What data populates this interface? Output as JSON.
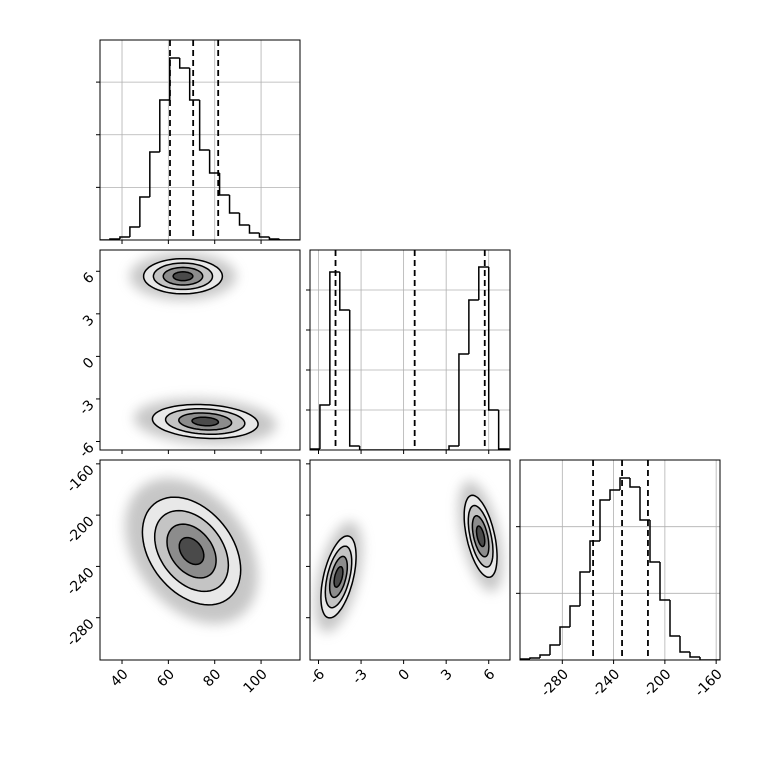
{
  "chart_data": [
    {
      "type": "histogram",
      "xlim": [
        30.5,
        116.8
      ],
      "ylim": [
        0,
        1900
      ],
      "xticks": [
        40,
        60,
        80,
        100
      ],
      "yticks": [
        500,
        1000,
        1500
      ],
      "grid": true,
      "xticklabels": false,
      "yticklabels": false,
      "bins": [
        30.5,
        34.8,
        39.1,
        43.4,
        47.7,
        52.0,
        56.3,
        60.6,
        64.9,
        69.2,
        73.5,
        77.8,
        82.1,
        86.4,
        90.7,
        95.0,
        99.3,
        103.6,
        107.9,
        112.2,
        116.5
      ],
      "values": [
        0,
        10,
        28,
        124,
        409,
        836,
        1330,
        1729,
        1634,
        1330,
        855,
        637,
        428,
        257,
        143,
        67,
        28,
        10,
        0,
        0
      ],
      "quantiles": [
        60.7,
        70.7,
        81.5
      ]
    },
    {
      "type": "contour",
      "xlim": [
        30.5,
        116.8
      ],
      "ylim": [
        -6.6,
        7.5
      ],
      "xticks": [
        40,
        60,
        80,
        100
      ],
      "yticks": [
        -6,
        -3,
        0,
        3,
        6
      ],
      "grid": false,
      "xticklabels": false,
      "yticklabels": true,
      "levels": [
        0.5,
        1,
        1.5,
        2
      ],
      "clusters": [
        {
          "x": 66.3,
          "y": 5.65,
          "sx": 8.5,
          "sy": 0.62,
          "rho": 0
        },
        {
          "x": 75.9,
          "y": -4.59,
          "sx": 11.4,
          "sy": 0.6,
          "rho": -0.15
        }
      ]
    },
    {
      "type": "histogram",
      "xlim": [
        -6.6,
        7.5
      ],
      "ylim": [
        0,
        5000
      ],
      "xticks": [
        -6,
        -3,
        0,
        3,
        6
      ],
      "yticks": [
        1000,
        2000,
        3000,
        4000
      ],
      "grid": true,
      "xticklabels": false,
      "yticklabels": false,
      "bins": [
        -6.6,
        -5.9,
        -5.2,
        -4.5,
        -3.8,
        -3.1,
        -2.4,
        -1.7,
        -1.0,
        -0.3,
        0.4,
        1.1,
        1.8,
        2.5,
        3.2,
        3.9,
        4.6,
        5.3,
        6.0,
        6.7,
        7.4
      ],
      "values": [
        25,
        1125,
        4450,
        3500,
        100,
        0,
        0,
        0,
        0,
        0,
        0,
        0,
        0,
        0,
        100,
        2400,
        3750,
        4575,
        1000,
        25
      ],
      "quantiles": [
        -4.8,
        0.78,
        5.72
      ]
    },
    {
      "type": "contour",
      "xlim": [
        30.5,
        116.8
      ],
      "ylim": [
        -313,
        -157
      ],
      "xticks": [
        40,
        60,
        80,
        100
      ],
      "yticks": [
        -280,
        -240,
        -200,
        -160
      ],
      "grid": false,
      "xticklabels": true,
      "yticklabels": true,
      "levels": [
        0.5,
        1,
        1.5,
        2
      ],
      "clusters": [
        {
          "x": 70,
          "y": -228,
          "sx": 10.6,
          "sy": 21,
          "rho": -0.35
        }
      ]
    },
    {
      "type": "contour",
      "xlim": [
        -6.6,
        7.5
      ],
      "ylim": [
        -313,
        -157
      ],
      "xticks": [
        -6,
        -3,
        0,
        3,
        6
      ],
      "yticks": [
        -280,
        -240,
        -200,
        -160
      ],
      "grid": false,
      "xticklabels": true,
      "yticklabels": false,
      "levels": [
        0.5,
        1,
        1.5,
        2
      ],
      "clusters": [
        {
          "x": -4.59,
          "y": -248.2,
          "sx": 0.62,
          "sy": 16,
          "rho": 0.5
        },
        {
          "x": 5.43,
          "y": -216.5,
          "sx": 0.58,
          "sy": 16,
          "rho": -0.5
        }
      ]
    },
    {
      "type": "histogram",
      "xlim": [
        -313,
        -157
      ],
      "ylim": [
        0,
        3000
      ],
      "xticks": [
        -280,
        -240,
        -200,
        -160
      ],
      "yticks": [
        1000,
        2000
      ],
      "grid": true,
      "xticklabels": true,
      "yticklabels": false,
      "bins": [
        -313,
        -305.2,
        -297.4,
        -289.6,
        -281.8,
        -274,
        -266.2,
        -258.4,
        -250.6,
        -242.8,
        -235,
        -227.2,
        -219.4,
        -211.6,
        -203.8,
        -196,
        -188.2,
        -180.4,
        -172.6,
        -164.8,
        -157
      ],
      "values": [
        15,
        30,
        75,
        225,
        495,
        810,
        1320,
        1785,
        2400,
        2550,
        2730,
        2595,
        2100,
        1470,
        900,
        360,
        120,
        45,
        0,
        0
      ],
      "quantiles": [
        -256,
        -233.4,
        -213.2
      ]
    }
  ]
}
